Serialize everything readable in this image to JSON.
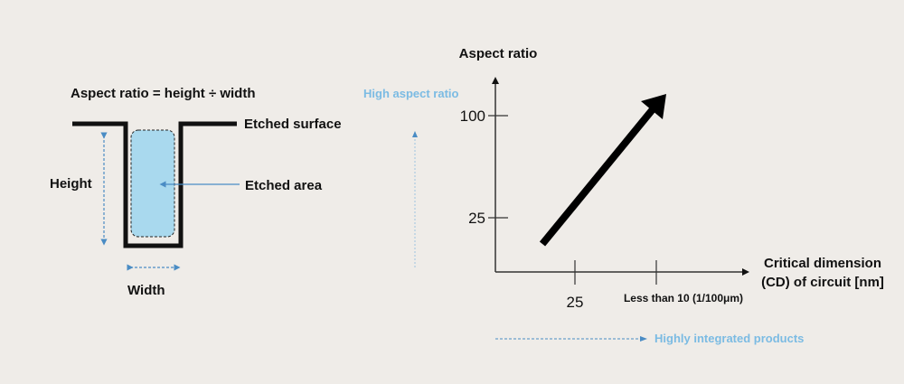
{
  "left": {
    "formula": "Aspect ratio = height ÷ width",
    "etched_surface": "Etched surface",
    "etched_area": "Etched area",
    "height": "Height",
    "width": "Width",
    "area_color": "#a9d9ee",
    "arrow_color": "#4a8cc4"
  },
  "right": {
    "y_axis_title": "Aspect ratio",
    "x_axis_title_line1": "Critical dimension",
    "x_axis_title_line2": "(CD) of circuit [nm]",
    "y_ticks": [
      "100",
      "25"
    ],
    "x_ticks": [
      "25",
      "Less than 10 (1/100μm)"
    ],
    "high_aspect_ratio": "High aspect ratio",
    "highly_integrated": "Highly integrated products",
    "accent_color": "#7bbbe3"
  }
}
